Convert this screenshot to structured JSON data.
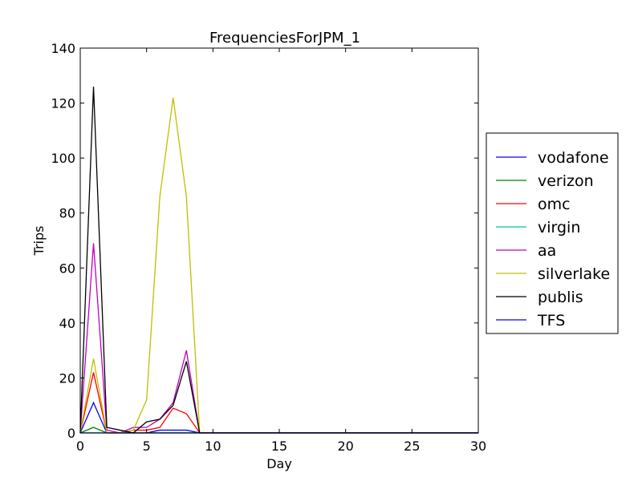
{
  "chart_data": {
    "type": "line",
    "title": "FrequenciesForJPM_1",
    "xlabel": "Day",
    "ylabel": "Trips",
    "xlim": [
      0,
      30
    ],
    "ylim": [
      0,
      140
    ],
    "xticks": [
      0,
      5,
      10,
      15,
      20,
      25,
      30
    ],
    "yticks": [
      0,
      20,
      40,
      60,
      80,
      100,
      120,
      140
    ],
    "grid": false,
    "legend_position": "center-right outside",
    "x": [
      0,
      1,
      2,
      3,
      4,
      5,
      6,
      7,
      8,
      9,
      10,
      11,
      12,
      13,
      14,
      15,
      16,
      17,
      18,
      19,
      20,
      21,
      22,
      23,
      24,
      25,
      26,
      27,
      28,
      29,
      30
    ],
    "series": [
      {
        "name": "vodafone",
        "color": "#0000ff",
        "values": [
          0,
          11,
          0,
          0,
          0,
          0,
          1,
          1,
          1,
          0,
          0,
          0,
          0,
          0,
          0,
          0,
          0,
          0,
          0,
          0,
          0,
          0,
          0,
          0,
          0,
          0,
          0,
          0,
          0,
          0,
          0
        ]
      },
      {
        "name": "verizon",
        "color": "#008000",
        "values": [
          0,
          2,
          0,
          0,
          0,
          0,
          0,
          0,
          0,
          0,
          0,
          0,
          0,
          0,
          0,
          0,
          0,
          0,
          0,
          0,
          0,
          0,
          0,
          0,
          0,
          0,
          0,
          0,
          0,
          0,
          0
        ]
      },
      {
        "name": "omc",
        "color": "#ff0000",
        "values": [
          0,
          22,
          0,
          0,
          1,
          1,
          2,
          9,
          7,
          0,
          0,
          0,
          0,
          0,
          0,
          0,
          0,
          0,
          0,
          0,
          0,
          0,
          0,
          0,
          0,
          0,
          0,
          0,
          0,
          0,
          0
        ]
      },
      {
        "name": "virgin",
        "color": "#00bfbf",
        "values": [
          0,
          0,
          0,
          0,
          0,
          0,
          0,
          0,
          0,
          0,
          0,
          0,
          0,
          0,
          0,
          0,
          0,
          0,
          0,
          0,
          0,
          0,
          0,
          0,
          0,
          0,
          0,
          0,
          0,
          0,
          0
        ]
      },
      {
        "name": "aa",
        "color": "#bf00bf",
        "values": [
          0,
          69,
          1,
          0,
          2,
          2,
          5,
          11,
          30,
          0,
          0,
          0,
          0,
          0,
          0,
          0,
          0,
          0,
          0,
          0,
          0,
          0,
          0,
          0,
          0,
          0,
          0,
          0,
          0,
          0,
          0
        ]
      },
      {
        "name": "silverlake",
        "color": "#bfbf00",
        "values": [
          0,
          27,
          0,
          0,
          1,
          12,
          86,
          122,
          86,
          0,
          0,
          0,
          0,
          0,
          0,
          0,
          0,
          0,
          0,
          0,
          0,
          0,
          0,
          0,
          0,
          0,
          0,
          0,
          0,
          0,
          0
        ]
      },
      {
        "name": "publis",
        "color": "#000000",
        "values": [
          0,
          126,
          2,
          1,
          0,
          4,
          5,
          10,
          26,
          0,
          0,
          0,
          0,
          0,
          0,
          0,
          0,
          0,
          0,
          0,
          0,
          0,
          0,
          0,
          0,
          0,
          0,
          0,
          0,
          0,
          0
        ]
      },
      {
        "name": "TFS",
        "color": "#0000ff",
        "values": [
          0,
          0,
          0,
          0,
          0,
          0,
          0,
          0,
          0,
          0,
          0,
          0,
          0,
          0,
          0,
          0,
          0,
          0,
          0,
          0,
          0,
          0,
          0,
          0,
          0,
          0,
          0,
          0,
          0,
          0,
          0
        ]
      }
    ]
  }
}
